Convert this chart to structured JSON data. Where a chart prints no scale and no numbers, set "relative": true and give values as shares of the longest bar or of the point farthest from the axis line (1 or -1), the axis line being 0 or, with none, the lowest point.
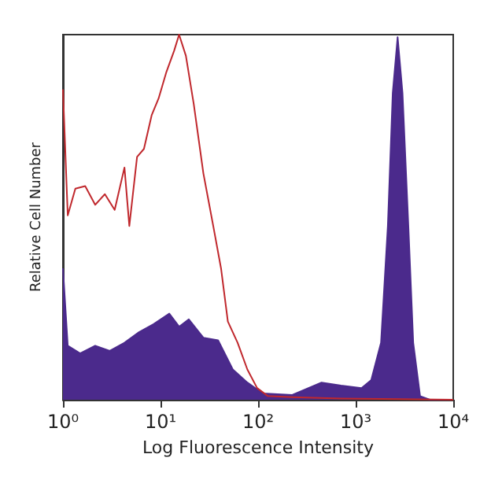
{
  "chart_data": {
    "type": "line",
    "xlabel": "Log Fluorescence Intensity",
    "ylabel": "Relative Cell Number",
    "relative": true,
    "log": "x",
    "grid": false,
    "marker": "none",
    "xlim": [
      1,
      10000
    ],
    "xticks": [
      {
        "value": 1,
        "label": "10⁰"
      },
      {
        "value": 10,
        "label": "10¹"
      },
      {
        "value": 100,
        "label": "10²"
      },
      {
        "value": 1000,
        "label": "10³"
      },
      {
        "value": 10000,
        "label": "10⁴"
      }
    ],
    "series": [
      {
        "type": "area",
        "color": "#4b2a8c",
        "x": [
          1,
          1.12,
          1.5,
          2.14,
          3.02,
          4.27,
          6.03,
          8.51,
          12.3,
          15.5,
          19.5,
          27.5,
          38.9,
          55,
          77.6,
          112,
          224,
          447,
          708,
          1148,
          1445,
          1820,
          2138,
          2399,
          2692,
          3020,
          3467,
          3890,
          4571,
          5754,
          10000
        ],
        "values": [
          0.36,
          0.148,
          0.127,
          0.148,
          0.134,
          0.156,
          0.185,
          0.207,
          0.236,
          0.2,
          0.22,
          0.17,
          0.163,
          0.083,
          0.047,
          0.017,
          0.013,
          0.047,
          0.039,
          0.032,
          0.054,
          0.156,
          0.476,
          0.84,
          0.993,
          0.84,
          0.476,
          0.156,
          0.01,
          0,
          0
        ]
      },
      {
        "color": "#c0282d",
        "x": [
          1,
          1.12,
          1.34,
          1.69,
          2.14,
          2.69,
          3.39,
          4.27,
          4.79,
          5.75,
          6.76,
          8.13,
          9.55,
          11.5,
          13.8,
          15.5,
          18.2,
          21.9,
          27.5,
          34.7,
          41.7,
          49,
          61.7,
          77.6,
          97.7,
          126,
          224,
          708,
          10000
        ],
        "values": [
          0.85,
          0.505,
          0.578,
          0.585,
          0.534,
          0.563,
          0.52,
          0.636,
          0.476,
          0.665,
          0.687,
          0.78,
          0.825,
          0.898,
          0.956,
          1,
          0.942,
          0.81,
          0.62,
          0.476,
          0.36,
          0.214,
          0.156,
          0.083,
          0.032,
          0.01,
          0.007,
          0.003,
          0
        ]
      }
    ]
  }
}
